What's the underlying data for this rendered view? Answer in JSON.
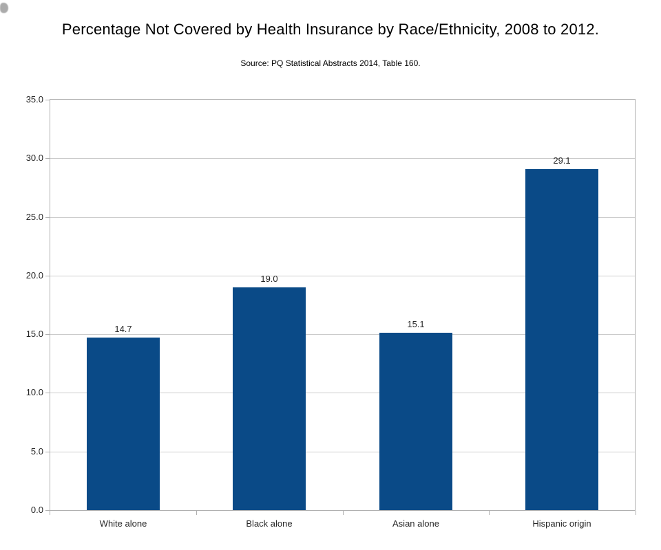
{
  "header": {
    "title": "Percentage Not Covered by Health Insurance by Race/Ethnicity, 2008 to 2012.",
    "subtitle": "Source: PQ Statistical Abstracts 2014, Table 160."
  },
  "chart_data": {
    "type": "bar",
    "title": "Percentage Not Covered by Health Insurance by Race/Ethnicity, 2008 to 2012.",
    "subtitle": "Source: PQ Statistical Abstracts 2014, Table 160.",
    "categories": [
      "White alone",
      "Black alone",
      "Asian alone",
      "Hispanic origin"
    ],
    "values": [
      14.7,
      19.0,
      15.1,
      29.1
    ],
    "value_labels": [
      "14.7",
      "19.0",
      "15.1",
      "29.1"
    ],
    "xlabel": "",
    "ylabel": "",
    "ylim": [
      0,
      35
    ],
    "ytick_interval": 5,
    "ytick_labels": [
      "0.0",
      "5.0",
      "10.0",
      "15.0",
      "20.0",
      "25.0",
      "30.0",
      "35.0"
    ],
    "grid": true,
    "legend": "none",
    "colors": {
      "bar": "#0a4a87",
      "grid": "#cbcbcb",
      "frame": "#b0b0b0",
      "label_text": "#262626",
      "title_text": "#000000",
      "background": "#ffffff"
    }
  }
}
